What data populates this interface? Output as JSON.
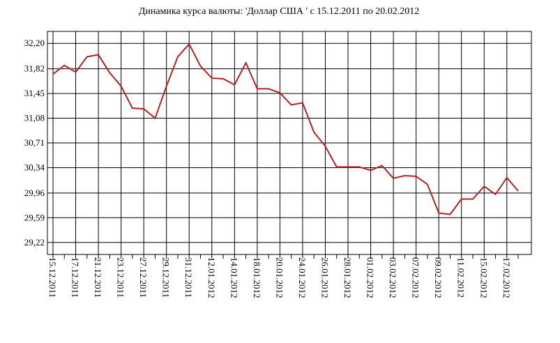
{
  "chart_data": {
    "type": "line",
    "title": "Динамика курса валюты: 'Доллар США ' с 15.12.2011 по 20.02.2012",
    "categories": [
      "15.12.2011",
      null,
      "17.12.2011",
      null,
      "21.12.2011",
      null,
      "23.12.2011",
      null,
      "27.12.2011",
      null,
      "29.12.2011",
      null,
      "31.12.2011",
      null,
      "12.01.2012",
      null,
      "14.01.2012",
      null,
      "18.01.2012",
      null,
      "20.01.2012",
      null,
      "24.01.2012",
      null,
      "26.01.2012",
      null,
      "28.01.2012",
      null,
      "01.02.2012",
      null,
      "03.02.2012",
      null,
      "07.02.2012",
      null,
      "09.02.2012",
      null,
      "11.02.2012",
      null,
      "15.02.2012",
      null,
      "17.02.2012",
      null
    ],
    "series": [
      {
        "name": "Доллар США",
        "color": "#b22222",
        "values": [
          31.74,
          31.87,
          31.77,
          32.0,
          32.03,
          31.76,
          31.56,
          31.23,
          31.22,
          31.08,
          31.56,
          32.0,
          32.19,
          31.86,
          31.68,
          31.67,
          31.58,
          31.91,
          31.52,
          31.52,
          31.46,
          31.28,
          31.31,
          30.87,
          30.66,
          30.35,
          30.35,
          30.35,
          30.3,
          30.37,
          30.18,
          30.22,
          30.21,
          30.09,
          29.66,
          29.64,
          29.87,
          29.87,
          30.06,
          29.94,
          30.19,
          29.99
        ]
      }
    ],
    "ylim": [
      29.04,
      32.38
    ],
    "yticks": [
      {
        "value": 29.22,
        "label": "29,22"
      },
      {
        "value": 29.59,
        "label": "29,59"
      },
      {
        "value": 29.96,
        "label": "29,96"
      },
      {
        "value": 30.34,
        "label": "30,34"
      },
      {
        "value": 30.71,
        "label": "30,71"
      },
      {
        "value": 31.08,
        "label": "31,08"
      },
      {
        "value": 31.45,
        "label": "31,45"
      },
      {
        "value": 31.82,
        "label": "31,82"
      },
      {
        "value": 32.2,
        "label": "32,20"
      }
    ],
    "grid": true
  }
}
